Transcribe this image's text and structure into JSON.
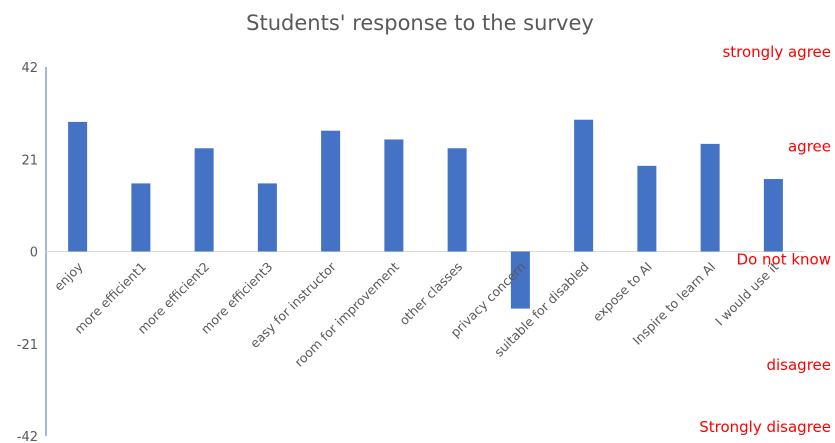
{
  "chart_data": {
    "type": "bar",
    "title": "Students' response to the survey",
    "xlabel": "",
    "ylabel": "",
    "ylim": [
      -42,
      42
    ],
    "yticks": [
      42,
      21,
      0,
      -21,
      -42
    ],
    "grid": false,
    "bar_color": "#4472c4",
    "categories": [
      "enjoy",
      "more efficient1",
      "more efficient2",
      "more efficient3",
      "easy for instructor",
      "room for improvement",
      "other classes",
      "privacy concern",
      "suitable for disabled",
      "expose to AI",
      "Inspire to learn AI",
      "I would use it"
    ],
    "values": [
      29.5,
      15.5,
      23.5,
      15.5,
      27.5,
      25.5,
      23.5,
      -13,
      30,
      19.5,
      24.5,
      16.5
    ],
    "annotations": [
      {
        "text": "strongly agree",
        "value": 42
      },
      {
        "text": "agree",
        "value": 21
      },
      {
        "text": "Do not know",
        "value": 0
      },
      {
        "text": "disagree",
        "value": -21
      },
      {
        "text": "Strongly disagree",
        "value": -42
      }
    ],
    "annotation_color": "#ff0000"
  }
}
